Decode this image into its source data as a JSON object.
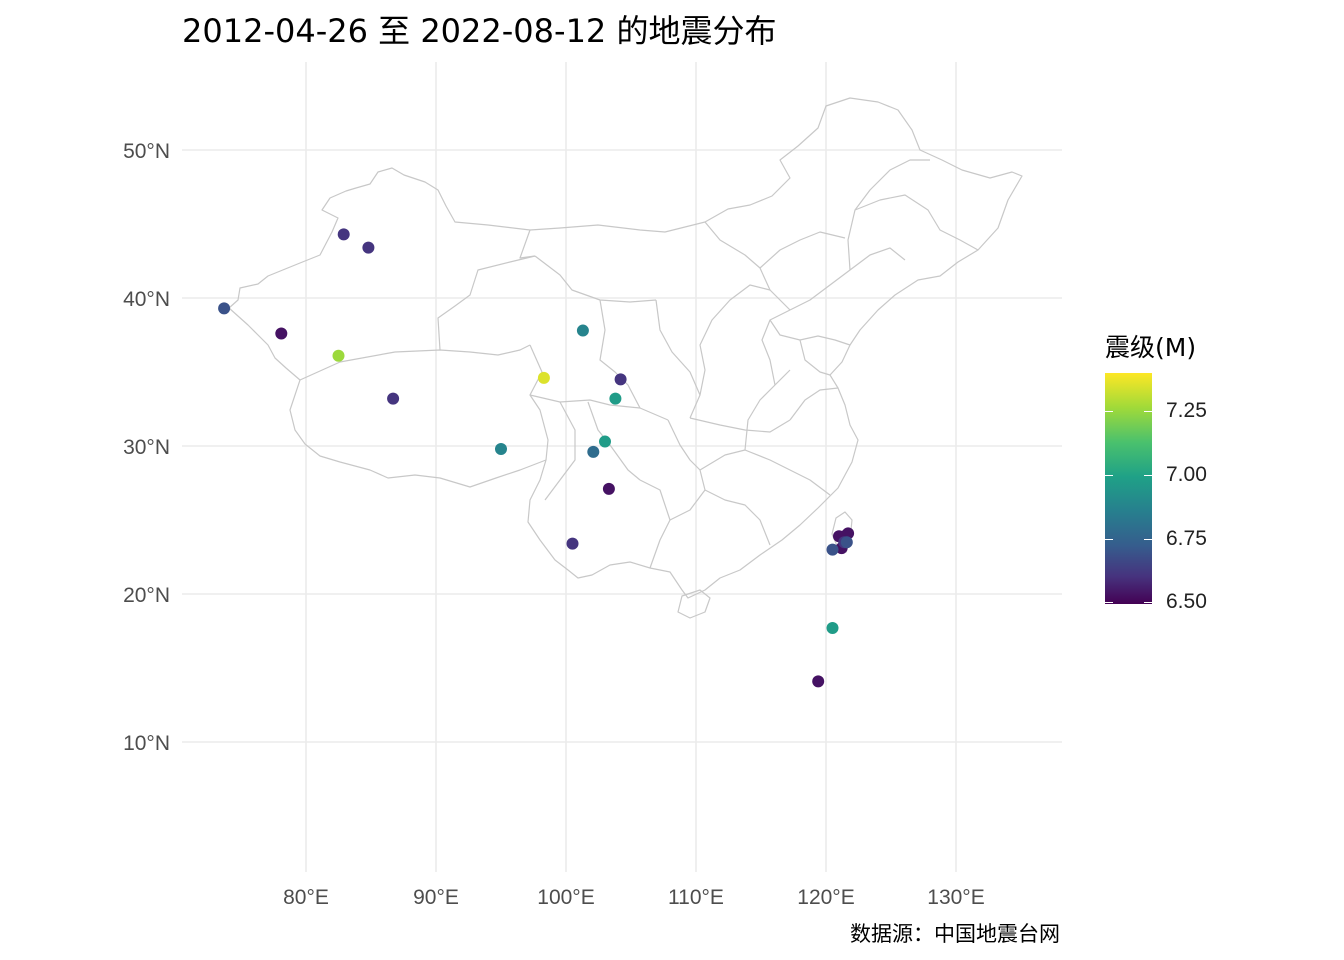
{
  "title": "2012-04-26 至 2022-08-12 的地震分布",
  "caption": "数据源：中国地震台网",
  "colors": {
    "grid": "#ebebeb",
    "boundary": "#c8c8c8",
    "scale": [
      "#440154",
      "#46337e",
      "#365c8d",
      "#277f8e",
      "#1fa187",
      "#4ac16d",
      "#a0da39",
      "#fde725"
    ]
  },
  "legend": {
    "title": "震级(M)",
    "labels": [
      "7.25",
      "7.00",
      "6.75",
      "6.50"
    ]
  },
  "chart_data": {
    "type": "scatter",
    "x_axis": {
      "ticks": [
        80,
        90,
        100,
        110,
        120,
        130
      ],
      "labels": [
        "80°E",
        "90°E",
        "100°E",
        "110°E",
        "120°E",
        "130°E"
      ]
    },
    "y_axis": {
      "ticks": [
        10,
        20,
        30,
        40,
        50
      ],
      "labels": [
        "10°N",
        "20°N",
        "30°N",
        "40°N",
        "50°N"
      ]
    },
    "xlim": [
      72,
      136
    ],
    "ylim": [
      3,
      56
    ],
    "color_range": [
      6.45,
      7.45
    ],
    "points": [
      {
        "lon": 82.9,
        "lat": 44.3,
        "mag": 6.6
      },
      {
        "lon": 84.8,
        "lat": 43.4,
        "mag": 6.6
      },
      {
        "lon": 73.7,
        "lat": 39.3,
        "mag": 6.7
      },
      {
        "lon": 78.1,
        "lat": 37.6,
        "mag": 6.5
      },
      {
        "lon": 82.5,
        "lat": 36.1,
        "mag": 7.3
      },
      {
        "lon": 86.7,
        "lat": 33.2,
        "mag": 6.6
      },
      {
        "lon": 101.3,
        "lat": 37.8,
        "mag": 6.9
      },
      {
        "lon": 98.3,
        "lat": 34.6,
        "mag": 7.4
      },
      {
        "lon": 104.2,
        "lat": 34.5,
        "mag": 6.6
      },
      {
        "lon": 103.8,
        "lat": 33.2,
        "mag": 7.0
      },
      {
        "lon": 103.0,
        "lat": 30.3,
        "mag": 7.0
      },
      {
        "lon": 95.0,
        "lat": 29.8,
        "mag": 6.9
      },
      {
        "lon": 102.1,
        "lat": 29.6,
        "mag": 6.8
      },
      {
        "lon": 103.3,
        "lat": 27.1,
        "mag": 6.5
      },
      {
        "lon": 100.5,
        "lat": 23.4,
        "mag": 6.6
      },
      {
        "lon": 121.0,
        "lat": 23.9,
        "mag": 6.5
      },
      {
        "lon": 121.4,
        "lat": 23.9,
        "mag": 6.5
      },
      {
        "lon": 121.7,
        "lat": 24.1,
        "mag": 6.5
      },
      {
        "lon": 121.2,
        "lat": 23.1,
        "mag": 6.5
      },
      {
        "lon": 121.4,
        "lat": 23.5,
        "mag": 6.6
      },
      {
        "lon": 120.5,
        "lat": 23.0,
        "mag": 6.7
      },
      {
        "lon": 121.6,
        "lat": 23.5,
        "mag": 6.7
      },
      {
        "lon": 120.5,
        "lat": 17.7,
        "mag": 7.0
      },
      {
        "lon": 119.4,
        "lat": 14.1,
        "mag": 6.5
      }
    ]
  }
}
